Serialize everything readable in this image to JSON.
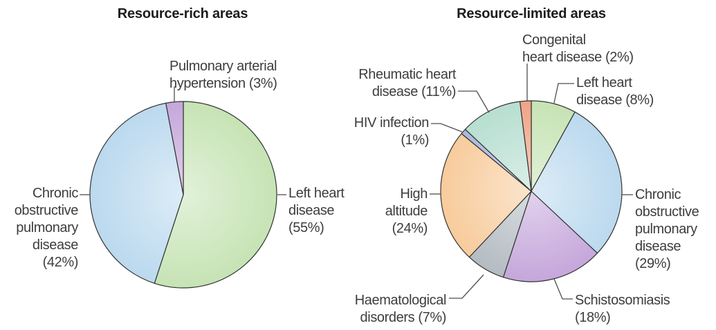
{
  "figure": {
    "background": "#ffffff",
    "text_color": "#3d3d3d",
    "outline_color": "#333333",
    "leader_line_color": "#4d4d4d"
  },
  "chart_data": [
    {
      "type": "pie",
      "title": "Resource-rich areas",
      "unit": "percent",
      "direction": "clockwise",
      "start": "top",
      "legend_position": "outside-labels",
      "slices": [
        {
          "label": "Left heart disease",
          "pct": 55,
          "color": "#c5e3b3",
          "display": [
            "Left heart",
            "disease",
            "(55%)"
          ]
        },
        {
          "label": "Chronic obstructive pulmonary disease",
          "pct": 42,
          "color": "#bad8ee",
          "display": [
            "Chronic",
            "obstructive",
            "pulmonary",
            "disease",
            "(42%)"
          ]
        },
        {
          "label": "Pulmonary arterial hypertension",
          "pct": 3,
          "color": "#c4a5da",
          "display": [
            "Pulmonary arterial",
            "hypertension (3%)"
          ]
        }
      ]
    },
    {
      "type": "pie",
      "title": "Resource-limited areas",
      "unit": "percent",
      "direction": "clockwise",
      "start": "top",
      "legend_position": "outside-labels",
      "slices": [
        {
          "label": "Left heart disease",
          "pct": 8,
          "color": "#c5e3b3",
          "display": [
            "Left heart",
            "disease (8%)"
          ]
        },
        {
          "label": "Chronic obstructive pulmonary disease",
          "pct": 29,
          "color": "#bad8ee",
          "display": [
            "Chronic",
            "obstructive",
            "pulmonary",
            "disease",
            "(29%)"
          ]
        },
        {
          "label": "Schistosomiasis",
          "pct": 18,
          "color": "#c4a5da",
          "display": [
            "Schistosomiasis",
            "(18%)"
          ]
        },
        {
          "label": "Haematological disorders",
          "pct": 7,
          "color": "#b2bac0",
          "display": [
            "Haematological",
            "disorders (7%)"
          ]
        },
        {
          "label": "High altitude",
          "pct": 24,
          "color": "#f7ca9a",
          "display": [
            "High",
            "altitude",
            "(24%)"
          ]
        },
        {
          "label": "HIV infection",
          "pct": 1,
          "color": "#a8b4da",
          "display": [
            "HIV infection",
            "(1%)"
          ]
        },
        {
          "label": "Rheumatic heart disease",
          "pct": 11,
          "color": "#b6decf",
          "display": [
            "Rheumatic heart",
            "disease (11%)"
          ]
        },
        {
          "label": "Congenital heart disease",
          "pct": 2,
          "color": "#efa184",
          "display": [
            "Congenital",
            "heart disease (2%)"
          ]
        }
      ]
    }
  ]
}
